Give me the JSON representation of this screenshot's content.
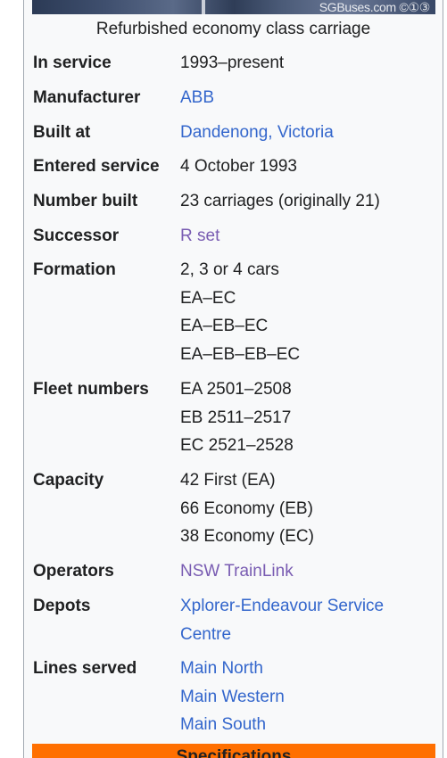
{
  "photo": {
    "watermark": "SGBuses.com ©①③"
  },
  "caption": "Refurbished economy class carriage",
  "rows": {
    "in_service": {
      "label": "In service",
      "value": "1993–present"
    },
    "manufacturer": {
      "label": "Manufacturer",
      "value": "ABB"
    },
    "built_at": {
      "label": "Built at",
      "value": "Dandenong, Victoria"
    },
    "entered_service": {
      "label": "Entered service",
      "value": "4 October 1993"
    },
    "number_built": {
      "label": "Number built",
      "value": "23 carriages (originally 21)"
    },
    "successor": {
      "label": "Successor",
      "value": "R set"
    },
    "formation": {
      "label": "Formation",
      "values": [
        "2, 3 or 4 cars",
        "EA–EC",
        "EA–EB–EC",
        "EA–EB–EB–EC"
      ]
    },
    "fleet_numbers": {
      "label": "Fleet numbers",
      "values": [
        "EA 2501–2508",
        "EB 2511–2517",
        "EC 2521–2528"
      ]
    },
    "capacity": {
      "label": "Capacity",
      "values": [
        "42 First (EA)",
        "66 Economy (EB)",
        "38 Economy (EC)"
      ]
    },
    "operators": {
      "label": "Operators",
      "value": "NSW TrainLink"
    },
    "depots": {
      "label": "Depots",
      "values": [
        "Xplorer-Endeavour Service",
        "Centre"
      ]
    },
    "lines_served": {
      "label": "Lines served",
      "values": [
        "Main North",
        "Main Western",
        "Main South"
      ]
    }
  },
  "specifications_heading": "Specifications",
  "colors": {
    "link": "#3366cc",
    "visited_link": "#795cb2",
    "section_header": "#ff6f00",
    "infobox_background": "#f8f9fa"
  }
}
